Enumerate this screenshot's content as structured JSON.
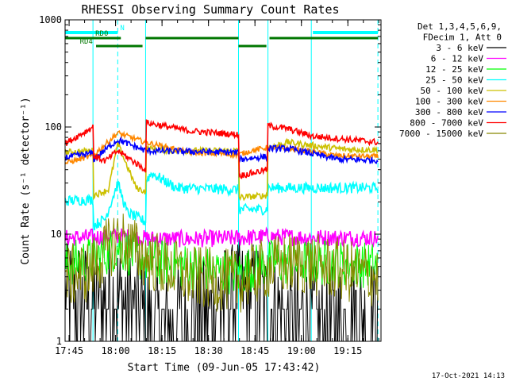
{
  "chart_data": {
    "type": "line",
    "title": "RHESSI Observing Summary Count Rates",
    "xlabel": "Start Time (09-Jun-05 17:43:42)",
    "ylabel": "Count Rate (s⁻¹ detector⁻¹)",
    "y_scale": "log",
    "ylim": [
      1,
      1000
    ],
    "x_unit": "minutes after 17:43:42",
    "xlim": [
      0,
      102
    ],
    "x_ticks": [
      {
        "t": 1.3,
        "label": "17:45"
      },
      {
        "t": 16.3,
        "label": "18:00"
      },
      {
        "t": 31.3,
        "label": "18:15"
      },
      {
        "t": 46.3,
        "label": "18:30"
      },
      {
        "t": 61.3,
        "label": "18:45"
      },
      {
        "t": 76.3,
        "label": "19:00"
      },
      {
        "t": 91.3,
        "label": "19:15"
      }
    ],
    "y_ticks": [
      {
        "v": 1,
        "label": "1"
      },
      {
        "v": 10,
        "label": "10"
      },
      {
        "v": 100,
        "label": "100"
      },
      {
        "v": 1000,
        "label": "1000"
      }
    ],
    "legend": {
      "placement": "right",
      "header": [
        "Det 1,3,4,5,6,9,",
        "FDecim 1, Att 0"
      ]
    },
    "flags": [
      {
        "name": "N",
        "color": "#00ffff",
        "segments": [
          [
            0,
            17
          ],
          [
            80,
            101
          ]
        ]
      },
      {
        "name": "RD0",
        "color": "#007700",
        "segments": [
          [
            0,
            18
          ],
          [
            26,
            56
          ],
          [
            66,
            101
          ]
        ]
      },
      {
        "name": "RD4",
        "color": "#007700",
        "segments": [
          [
            10,
            25
          ],
          [
            56,
            65
          ]
        ]
      }
    ],
    "vlines_solid": [
      0,
      9,
      26,
      56,
      65.5,
      79.5
    ],
    "vlines_dashed": [
      17,
      101
    ],
    "series": [
      {
        "name": "3 - 6 keV",
        "color": "#000000",
        "noise": 0.55,
        "points": [
          [
            0,
            3.0
          ],
          [
            8,
            2.3
          ],
          [
            16,
            2.8
          ],
          [
            30,
            1.4
          ],
          [
            40,
            1.6
          ],
          [
            56,
            2.6
          ],
          [
            62,
            2.6
          ],
          [
            65,
            2.1
          ],
          [
            75,
            1.5
          ],
          [
            88,
            1.6
          ],
          [
            101,
            1.7
          ]
        ]
      },
      {
        "name": "6 - 12 keV",
        "color": "#ff00ff",
        "noise": 0.08,
        "points": [
          [
            0,
            9.2
          ],
          [
            10,
            9.4
          ],
          [
            17,
            9.6
          ],
          [
            26,
            9.1
          ],
          [
            40,
            9.0
          ],
          [
            56,
            9.2
          ],
          [
            65,
            9.5
          ],
          [
            80,
            9.3
          ],
          [
            101,
            9.2
          ]
        ]
      },
      {
        "name": "12 - 25 keV",
        "color": "#00ff00",
        "noise": 0.22,
        "points": [
          [
            0,
            5.2
          ],
          [
            10,
            6.0
          ],
          [
            17,
            7.6
          ],
          [
            26,
            5.6
          ],
          [
            40,
            5.0
          ],
          [
            56,
            4.3
          ],
          [
            65,
            5.4
          ],
          [
            80,
            5.5
          ],
          [
            101,
            5.1
          ]
        ]
      },
      {
        "name": "25 - 50 keV",
        "color": "#00ffff",
        "noise": 0.05,
        "points": [
          [
            0,
            20.5
          ],
          [
            9,
            21
          ],
          [
            9.2,
            12
          ],
          [
            13,
            14
          ],
          [
            17,
            30
          ],
          [
            20,
            16
          ],
          [
            26,
            13
          ],
          [
            26.2,
            32
          ],
          [
            28,
            37
          ],
          [
            36,
            27
          ],
          [
            56,
            26
          ],
          [
            56.2,
            17
          ],
          [
            65.3,
            17
          ],
          [
            65.5,
            27
          ],
          [
            101,
            27
          ]
        ]
      },
      {
        "name": "50 - 100 keV",
        "color": "#ccc000",
        "noise": 0.03,
        "points": [
          [
            0,
            58
          ],
          [
            9,
            60
          ],
          [
            9.2,
            23
          ],
          [
            14,
            26
          ],
          [
            17,
            70
          ],
          [
            23,
            27
          ],
          [
            26,
            25
          ],
          [
            26.2,
            63
          ],
          [
            35,
            60
          ],
          [
            56,
            60
          ],
          [
            56.2,
            22
          ],
          [
            65.3,
            23
          ],
          [
            65.5,
            64
          ],
          [
            72,
            72
          ],
          [
            80,
            67
          ],
          [
            90,
            62
          ],
          [
            101,
            61
          ]
        ]
      },
      {
        "name": "100 - 300 keV",
        "color": "#ff8800",
        "noise": 0.025,
        "points": [
          [
            0,
            46
          ],
          [
            9,
            54
          ],
          [
            17,
            88
          ],
          [
            26,
            72
          ],
          [
            40,
            58
          ],
          [
            56,
            55
          ],
          [
            60,
            60
          ],
          [
            65,
            64
          ],
          [
            74,
            62
          ],
          [
            88,
            54
          ],
          [
            101,
            53
          ]
        ]
      },
      {
        "name": "300 - 800 keV",
        "color": "#0000ff",
        "noise": 0.03,
        "points": [
          [
            0,
            52
          ],
          [
            9,
            57
          ],
          [
            9.2,
            50
          ],
          [
            17,
            76
          ],
          [
            26,
            60
          ],
          [
            26.2,
            60
          ],
          [
            40,
            59
          ],
          [
            56,
            58
          ],
          [
            56.2,
            50
          ],
          [
            65.3,
            53
          ],
          [
            65.5,
            63
          ],
          [
            72,
            63
          ],
          [
            88,
            50
          ],
          [
            101,
            49
          ]
        ]
      },
      {
        "name": "800 - 7000 keV",
        "color": "#ff0000",
        "noise": 0.03,
        "points": [
          [
            0,
            70
          ],
          [
            9,
            100
          ],
          [
            9.2,
            54
          ],
          [
            13,
            48
          ],
          [
            17,
            60
          ],
          [
            26,
            40
          ],
          [
            26.2,
            110
          ],
          [
            40,
            92
          ],
          [
            56,
            85
          ],
          [
            56.2,
            35
          ],
          [
            65.3,
            40
          ],
          [
            65.5,
            103
          ],
          [
            72,
            96
          ],
          [
            80,
            82
          ],
          [
            101,
            72
          ]
        ]
      },
      {
        "name": "7000 - 15000 keV",
        "color": "#888800",
        "noise": 0.3,
        "points": [
          [
            0,
            4.0
          ],
          [
            8,
            4.5
          ],
          [
            17,
            9.5
          ],
          [
            26,
            6.0
          ],
          [
            40,
            4.0
          ],
          [
            56,
            3.6
          ],
          [
            65,
            4.8
          ],
          [
            75,
            5.5
          ],
          [
            101,
            4.0
          ]
        ]
      }
    ]
  },
  "footer": {
    "timestamp": "17-Oct-2021 14:13"
  }
}
